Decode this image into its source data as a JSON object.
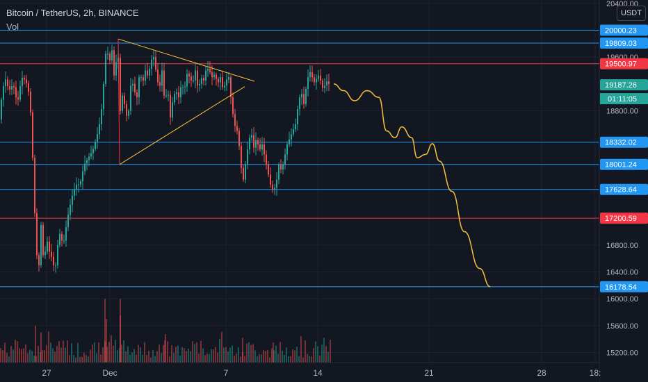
{
  "header": {
    "title": "Bitcoin / TetherUS, 2h, BINANCE",
    "indicator": "Vol",
    "currency": "USDT"
  },
  "chart_data": {
    "type": "candlestick",
    "y_axis": {
      "range": [
        15050,
        20450
      ],
      "ticks": [
        15200,
        15600,
        16000,
        16400,
        16800,
        18800,
        19600,
        20400
      ],
      "tick_labels": [
        "15200.00",
        "15600.00",
        "16000.00",
        "16400.00",
        "16800.00",
        "18800.00",
        "19600.00",
        "20400.00"
      ]
    },
    "x_axis": {
      "tick_labels": [
        "27",
        "Dec",
        "7",
        "14",
        "21",
        "28",
        "18:"
      ]
    },
    "horizontal_levels": [
      {
        "value": 20000.23,
        "label": "20000.23",
        "color": "#2196f3"
      },
      {
        "value": 19809.03,
        "label": "19809.03",
        "color": "#2196f3"
      },
      {
        "value": 19500.97,
        "label": "19500.97",
        "color": "#f23645"
      },
      {
        "value": 18332.02,
        "label": "18332.02",
        "color": "#2196f3"
      },
      {
        "value": 18001.24,
        "label": "18001.24",
        "color": "#2196f3"
      },
      {
        "value": 17628.64,
        "label": "17628.64",
        "color": "#2196f3"
      },
      {
        "value": 17200.59,
        "label": "17200.59",
        "color": "#f23645"
      },
      {
        "value": 16178.54,
        "label": "16178.54",
        "color": "#2196f3"
      }
    ],
    "last_price": {
      "value": 19187.26,
      "label": "19187.26",
      "color": "#26a69a"
    },
    "countdown": "01:11:05",
    "price_path": [
      [
        -5,
        18320
      ],
      [
        0,
        18900
      ],
      [
        6,
        19300
      ],
      [
        12,
        19100
      ],
      [
        18,
        19200
      ],
      [
        24,
        18900
      ],
      [
        30,
        19300
      ],
      [
        36,
        19250
      ],
      [
        42,
        19000
      ],
      [
        46,
        18100
      ],
      [
        50,
        17000
      ],
      [
        54,
        16300
      ],
      [
        58,
        17100
      ],
      [
        62,
        16500
      ],
      [
        66,
        16900
      ],
      [
        70,
        16700
      ],
      [
        74,
        16600
      ],
      [
        78,
        16400
      ],
      [
        84,
        17000
      ],
      [
        90,
        16800
      ],
      [
        96,
        17200
      ],
      [
        102,
        17500
      ],
      [
        108,
        17700
      ],
      [
        114,
        17700
      ],
      [
        120,
        18000
      ],
      [
        126,
        18100
      ],
      [
        132,
        18200
      ],
      [
        138,
        18400
      ],
      [
        144,
        18700
      ],
      [
        148,
        19200
      ],
      [
        152,
        19800
      ],
      [
        156,
        19500
      ],
      [
        160,
        19700
      ],
      [
        164,
        19200
      ],
      [
        168,
        19850
      ],
      [
        172,
        18800
      ],
      [
        176,
        19100
      ],
      [
        180,
        18700
      ],
      [
        184,
        18800
      ],
      [
        188,
        19300
      ],
      [
        192,
        19100
      ],
      [
        196,
        19000
      ],
      [
        200,
        19400
      ],
      [
        204,
        19200
      ],
      [
        208,
        19400
      ],
      [
        212,
        19300
      ],
      [
        216,
        19550
      ],
      [
        220,
        19600
      ],
      [
        224,
        19350
      ],
      [
        228,
        19100
      ],
      [
        232,
        19400
      ],
      [
        236,
        18900
      ],
      [
        240,
        19150
      ],
      [
        244,
        18700
      ],
      [
        248,
        19000
      ],
      [
        252,
        19100
      ],
      [
        256,
        19000
      ],
      [
        260,
        19200
      ],
      [
        264,
        19100
      ],
      [
        268,
        19350
      ],
      [
        272,
        19300
      ],
      [
        276,
        19200
      ],
      [
        280,
        19400
      ],
      [
        284,
        19100
      ],
      [
        288,
        19300
      ],
      [
        292,
        19250
      ],
      [
        296,
        19450
      ],
      [
        300,
        19400
      ],
      [
        304,
        19300
      ],
      [
        308,
        19350
      ],
      [
        312,
        19200
      ],
      [
        316,
        19300
      ],
      [
        320,
        19100
      ],
      [
        324,
        19250
      ],
      [
        328,
        19300
      ],
      [
        332,
        18900
      ],
      [
        336,
        18600
      ],
      [
        340,
        18500
      ],
      [
        344,
        18200
      ],
      [
        348,
        17700
      ],
      [
        352,
        18000
      ],
      [
        356,
        18300
      ],
      [
        360,
        18500
      ],
      [
        364,
        18250
      ],
      [
        368,
        18400
      ],
      [
        372,
        18200
      ],
      [
        376,
        18300
      ],
      [
        380,
        18100
      ],
      [
        384,
        17900
      ],
      [
        388,
        17700
      ],
      [
        392,
        17600
      ],
      [
        396,
        17700
      ],
      [
        400,
        18000
      ],
      [
        404,
        17900
      ],
      [
        408,
        18100
      ],
      [
        412,
        18300
      ],
      [
        416,
        18400
      ],
      [
        420,
        18500
      ],
      [
        424,
        18600
      ],
      [
        428,
        18900
      ],
      [
        432,
        19100
      ],
      [
        436,
        18900
      ],
      [
        440,
        19200
      ],
      [
        444,
        19400
      ],
      [
        448,
        19300
      ],
      [
        452,
        19200
      ],
      [
        456,
        19350
      ],
      [
        460,
        19250
      ],
      [
        464,
        19100
      ],
      [
        468,
        19250
      ],
      [
        472,
        19200
      ],
      [
        476,
        19187
      ]
    ],
    "volume_peaks": [
      [
        50,
        15600
      ],
      [
        58,
        15500
      ],
      [
        150,
        16000
      ],
      [
        152,
        15700
      ],
      [
        172,
        16000
      ],
      [
        172,
        15750
      ],
      [
        236,
        15380
      ],
      [
        348,
        15420
      ],
      [
        392,
        15350
      ]
    ],
    "triangle": {
      "color": "#f7c23b",
      "apex_high": [
        170,
        19870
      ],
      "apex_right": [
        366,
        19240
      ],
      "low": [
        172,
        18000
      ],
      "right_low": [
        352,
        19160
      ]
    },
    "projection": {
      "color": "#f7c23b",
      "points": [
        [
          480,
          19200
        ],
        [
          494,
          19100
        ],
        [
          510,
          18950
        ],
        [
          528,
          19100
        ],
        [
          545,
          19000
        ],
        [
          556,
          18500
        ],
        [
          568,
          18400
        ],
        [
          578,
          18560
        ],
        [
          592,
          18400
        ],
        [
          600,
          18100
        ],
        [
          612,
          18150
        ],
        [
          622,
          18310
        ],
        [
          632,
          18050
        ],
        [
          650,
          17600
        ],
        [
          668,
          17000
        ],
        [
          690,
          16450
        ],
        [
          705,
          16180
        ]
      ]
    }
  }
}
